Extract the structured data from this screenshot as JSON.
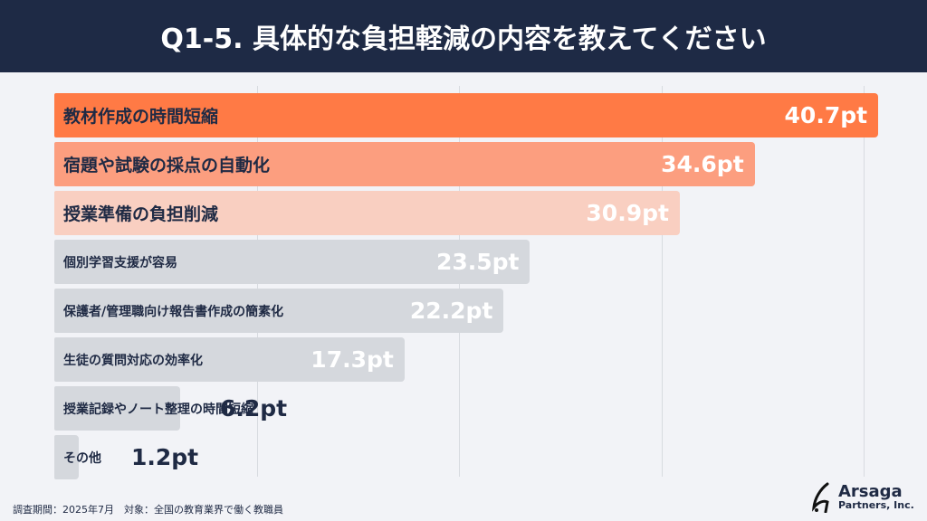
{
  "header": {
    "title": "Q1-5. 具体的な負担軽減の内容を教えてください"
  },
  "chart_data": {
    "type": "bar",
    "orientation": "horizontal",
    "categories": [
      "教材作成の時間短縮",
      "宿題や試験の採点の自動化",
      "授業準備の負担削減",
      "個別学習支援が容易",
      "保護者/管理職向け報告書作成の簡素化",
      "生徒の質問対応の効率化",
      "授業記録やノート整理の時間短縮",
      "その他"
    ],
    "values": [
      40.7,
      34.6,
      30.9,
      23.5,
      22.2,
      17.3,
      6.2,
      1.2
    ],
    "value_labels": [
      "40.7pt",
      "34.6pt",
      "30.9pt",
      "23.5pt",
      "22.2pt",
      "17.3pt",
      "6.2pt",
      "1.2pt"
    ],
    "colors": [
      "#ff7a45",
      "#fc9e7f",
      "#f9cfc1",
      "#d5d8dd",
      "#d5d8dd",
      "#d5d8dd",
      "#d5d8dd",
      "#d5d8dd"
    ],
    "xlim": [
      0,
      41
    ],
    "gridlines": [
      10,
      20,
      30,
      40
    ],
    "grid": true
  },
  "footer": {
    "note": "調査期間：2025年7月　対象：全国の教育業界で働く教職員"
  },
  "logo": {
    "name": "Arsaga",
    "sub": "Partners, Inc."
  }
}
